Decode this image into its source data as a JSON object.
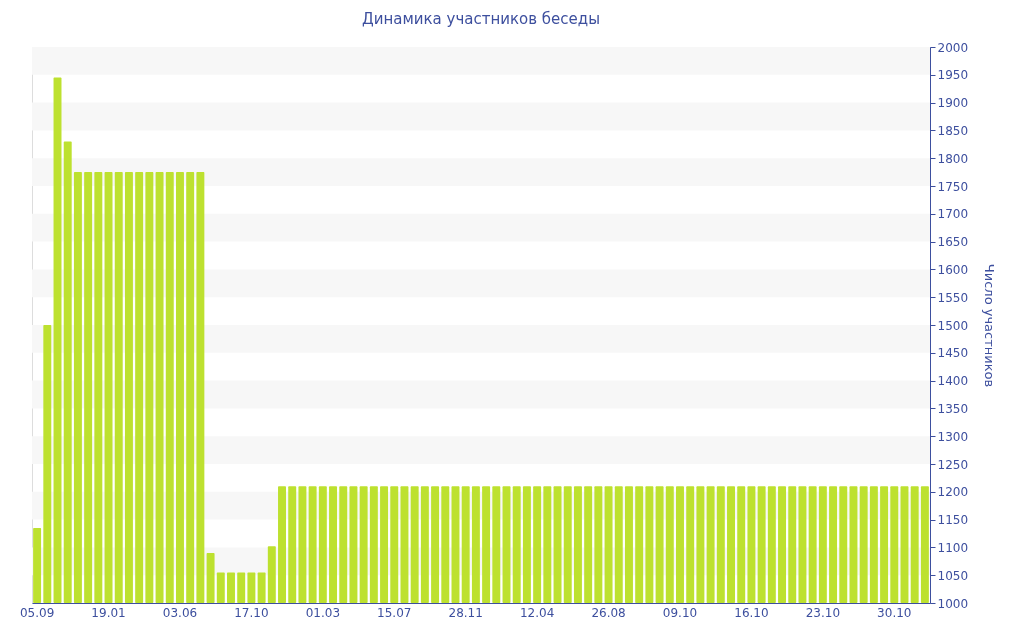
{
  "chart_data": {
    "type": "bar",
    "title": "Динамика участников беседы",
    "ylabel": "Число участников",
    "categories": [
      "05.09",
      null,
      null,
      null,
      null,
      null,
      null,
      "19.01",
      null,
      null,
      null,
      null,
      null,
      null,
      "03.06",
      null,
      null,
      null,
      null,
      null,
      null,
      "17.10",
      null,
      null,
      null,
      null,
      null,
      null,
      "01.03",
      null,
      null,
      null,
      null,
      null,
      null,
      "15.07",
      null,
      null,
      null,
      null,
      null,
      null,
      "28.11",
      null,
      null,
      null,
      null,
      null,
      null,
      "12.04",
      null,
      null,
      null,
      null,
      null,
      null,
      "26.08",
      null,
      null,
      null,
      null,
      null,
      null,
      "09.10",
      null,
      null,
      null,
      null,
      null,
      null,
      "16.10",
      null,
      null,
      null,
      null,
      null,
      null,
      "23.10",
      null,
      null,
      null,
      null,
      null,
      null,
      "30.10",
      null,
      null,
      null
    ],
    "values": [
      1135,
      1500,
      1945,
      1830,
      1775,
      1775,
      1775,
      1775,
      1775,
      1775,
      1775,
      1775,
      1775,
      1775,
      1775,
      1775,
      1775,
      1090,
      1055,
      1055,
      1055,
      1055,
      1055,
      1102,
      1210,
      1210,
      1210,
      1210,
      1210,
      1210,
      1210,
      1210,
      1210,
      1210,
      1210,
      1210,
      1210,
      1210,
      1210,
      1210,
      1210,
      1210,
      1210,
      1210,
      1210,
      1210,
      1210,
      1210,
      1210,
      1210,
      1210,
      1210,
      1210,
      1210,
      1210,
      1210,
      1210,
      1210,
      1210,
      1210,
      1210,
      1210,
      1210,
      1210,
      1210,
      1210,
      1210,
      1210,
      1210,
      1210,
      1210,
      1210,
      1210,
      1210,
      1210,
      1210,
      1210,
      1210,
      1210,
      1210,
      1210,
      1210,
      1210,
      1210,
      1210,
      1210,
      1210,
      1210
    ],
    "color": "#bde12f",
    "ylim": [
      1000,
      2000
    ],
    "yticks": [
      1000,
      1050,
      1100,
      1150,
      1200,
      1250,
      1300,
      1350,
      1400,
      1450,
      1500,
      1550,
      1600,
      1650,
      1700,
      1750,
      1800,
      1850,
      1900,
      1950,
      2000
    ],
    "bands": [
      {
        "axis": "y",
        "from": 1050,
        "to": 1100,
        "color": "#f7f7f7"
      },
      {
        "axis": "y",
        "from": 1150,
        "to": 1200,
        "color": "#f7f7f7"
      },
      {
        "axis": "y",
        "from": 1250,
        "to": 1300,
        "color": "#f7f7f7"
      },
      {
        "axis": "y",
        "from": 1350,
        "to": 1400,
        "color": "#f7f7f7"
      },
      {
        "axis": "y",
        "from": 1450,
        "to": 1500,
        "color": "#f7f7f7"
      },
      {
        "axis": "y",
        "from": 1550,
        "to": 1600,
        "color": "#f7f7f7"
      },
      {
        "axis": "y",
        "from": 1650,
        "to": 1700,
        "color": "#f7f7f7"
      },
      {
        "axis": "y",
        "from": 1750,
        "to": 1800,
        "color": "#f7f7f7"
      },
      {
        "axis": "y",
        "from": 1850,
        "to": 1900,
        "color": "#f7f7f7"
      },
      {
        "axis": "y",
        "from": 1950,
        "to": 2000,
        "color": "#f7f7f7"
      }
    ]
  }
}
